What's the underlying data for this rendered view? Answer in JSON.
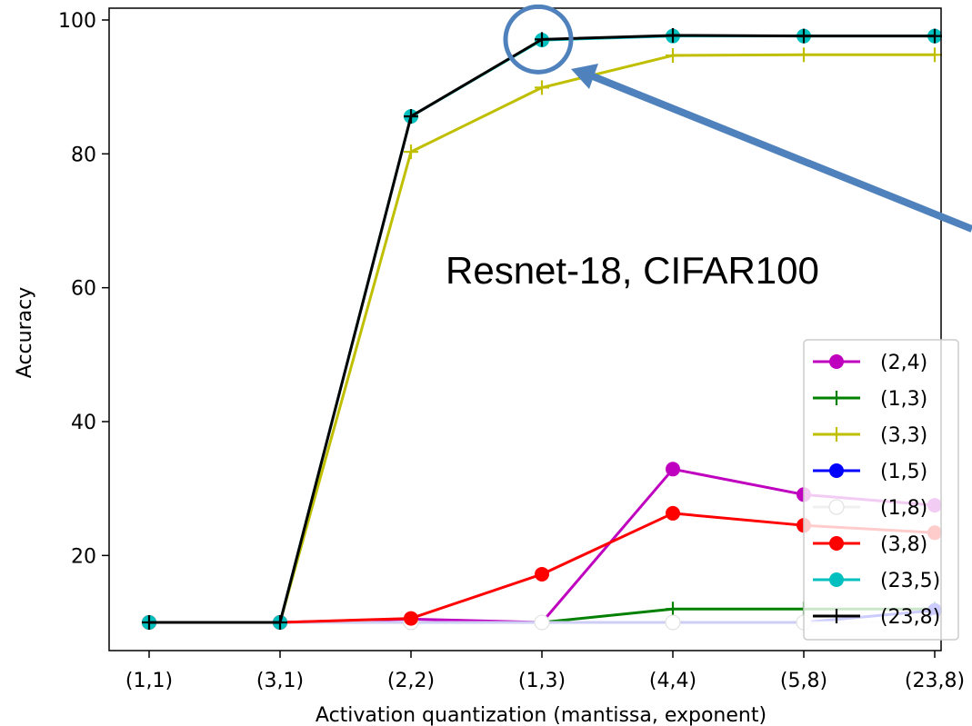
{
  "chart_data": {
    "type": "line",
    "title": "",
    "xlabel": "Activation quantization (mantissa, exponent)",
    "ylabel": "Accuracy",
    "categories": [
      "(1,1)",
      "(3,1)",
      "(2,2)",
      "(1,3)",
      "(4,4)",
      "(5,8)",
      "(23,8)"
    ],
    "yticks": [
      20,
      40,
      60,
      80,
      100
    ],
    "ylim": [
      7,
      102
    ],
    "grid": false,
    "legend_position": "lower-right",
    "annotation": "Resnet-18, CIFAR100",
    "series": [
      {
        "name": "(2,4)",
        "color": "#bf00bf",
        "marker": "circle",
        "values": [
          10,
          10,
          10.5,
          10,
          32.9,
          29.1,
          27.5
        ]
      },
      {
        "name": "(1,3)",
        "color": "#008000",
        "marker": "plus",
        "values": [
          10,
          10,
          10,
          10,
          12,
          12,
          12
        ]
      },
      {
        "name": "(3,3)",
        "color": "#bfbf00",
        "marker": "plus",
        "values": [
          10,
          10,
          80.3,
          89.9,
          94.7,
          94.8,
          94.8
        ]
      },
      {
        "name": "(1,5)",
        "color": "#0000ff",
        "marker": "circle",
        "values": [
          10,
          10,
          10,
          10,
          10,
          10,
          11.8
        ]
      },
      {
        "name": "(1,8)",
        "color": "#ffffff",
        "marker": "circle",
        "values": [
          10,
          10,
          10,
          10,
          10,
          10,
          10
        ]
      },
      {
        "name": "(3,8)",
        "color": "#ff0000",
        "marker": "circle",
        "values": [
          10,
          10,
          10.6,
          17.2,
          26.3,
          24.5,
          23.4
        ]
      },
      {
        "name": "(23,5)",
        "color": "#00bfbf",
        "marker": "circle",
        "values": [
          10,
          10,
          85.6,
          97.0,
          97.6,
          97.6,
          97.6
        ]
      },
      {
        "name": "(23,8)",
        "color": "#000000",
        "marker": "plus",
        "values": [
          10,
          10,
          85.6,
          97.1,
          97.7,
          97.6,
          97.6
        ]
      }
    ],
    "highlight": {
      "category": "(1,3)",
      "value": 97.1,
      "color": "#4f81bd"
    }
  }
}
